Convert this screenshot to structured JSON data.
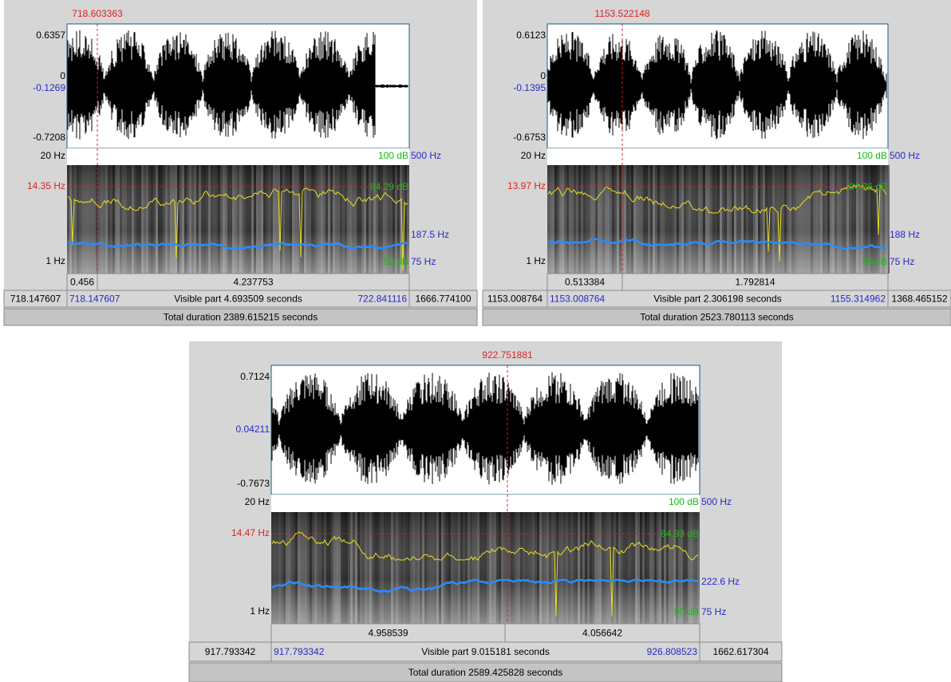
{
  "panels": [
    {
      "cursor_time": "718.603363",
      "wave_max": "0.6357",
      "wave_zero": "0",
      "wave_mid": "-0.1269",
      "wave_min": "-0.7208",
      "freq_top": "20 Hz",
      "db_top": "100 dB",
      "hz_top": "500 Hz",
      "cursor_freq": "14.35 Hz",
      "cursor_db": "84.29 dB",
      "pitch_value": "187.5 Hz",
      "freq_bottom": "1 Hz",
      "db_bottom": "50 dB",
      "hz_bottom": "75 Hz",
      "segments": [
        "0.456",
        "4.237753"
      ],
      "window_start": "718.147607",
      "visible_start": "718.147607",
      "visible_part": "Visible part 4.693509 seconds",
      "visible_end": "722.841116",
      "window_end": "1666.774100",
      "total_duration": "Total duration 2389.615215 seconds"
    },
    {
      "cursor_time": "1153.522148",
      "wave_max": "0.6123",
      "wave_zero": "0",
      "wave_mid": "-0.1395",
      "wave_min": "-0.6753",
      "freq_top": "20 Hz",
      "db_top": "100 dB",
      "hz_top": "500 Hz",
      "cursor_freq": "13.97 Hz",
      "cursor_db": "84.26 dB",
      "pitch_value": "188 Hz",
      "freq_bottom": "1 Hz",
      "db_bottom": "50 dB",
      "hz_bottom": "75 Hz",
      "segments": [
        "0.513384",
        "1.792814"
      ],
      "window_start": "1153.008764",
      "visible_start": "1153.008764",
      "visible_part": "Visible part 2.306198 seconds",
      "visible_end": "1155.314962",
      "window_end": "1368.465152",
      "total_duration": "Total duration 2523.780113 seconds"
    },
    {
      "cursor_time": "922.751881",
      "wave_max": "0.7124",
      "wave_mid": "0.04211",
      "wave_min": "-0.7673",
      "freq_top": "20 Hz",
      "db_top": "100 dB",
      "hz_top": "500 Hz",
      "cursor_freq": "14.47 Hz",
      "cursor_db": "84.93 dB",
      "pitch_value": "222.6 Hz",
      "freq_bottom": "1 Hz",
      "db_bottom": "50 dB",
      "hz_bottom": "75 Hz",
      "segments": [
        "4.958539",
        "4.056642"
      ],
      "window_start": "917.793342",
      "visible_start": "917.793342",
      "visible_part": "Visible part 9.015181 seconds",
      "visible_end": "926.808523",
      "window_end": "1662.617304",
      "total_duration": "Total duration 2589.425828 seconds"
    }
  ]
}
